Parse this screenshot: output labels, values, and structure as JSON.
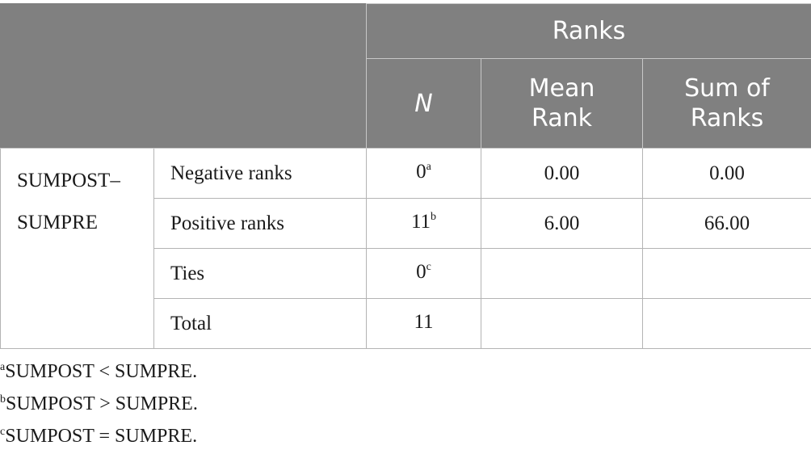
{
  "table": {
    "header": {
      "group_label": "Ranks",
      "n_label": "N",
      "mean_rank_label_1": "Mean",
      "mean_rank_label_2": "Rank",
      "sum_of_ranks_label_1": "Sum of",
      "sum_of_ranks_label_2": "Ranks"
    },
    "group_label": {
      "line1": "SUMPOST–",
      "line2": "SUMPRE"
    },
    "rows": [
      {
        "label": "Negative ranks",
        "n": "0",
        "n_sup": "a",
        "mean_rank": "0.00",
        "sum_of_ranks": "0.00"
      },
      {
        "label": "Positive ranks",
        "n": "11",
        "n_sup": "b",
        "mean_rank": "6.00",
        "sum_of_ranks": "66.00"
      },
      {
        "label": "Ties",
        "n": "0",
        "n_sup": "c",
        "mean_rank": "",
        "sum_of_ranks": ""
      },
      {
        "label": "Total",
        "n": "11",
        "n_sup": "",
        "mean_rank": "",
        "sum_of_ranks": ""
      }
    ]
  },
  "footnotes": [
    {
      "marker": "a",
      "text": "SUMPOST < SUMPRE."
    },
    {
      "marker": "b",
      "text": "SUMPOST > SUMPRE."
    },
    {
      "marker": "c",
      "text": "SUMPOST = SUMPRE."
    }
  ],
  "colors": {
    "header_background": "#808080",
    "header_text": "#ffffff",
    "grid_line": "#b4b4b4"
  }
}
